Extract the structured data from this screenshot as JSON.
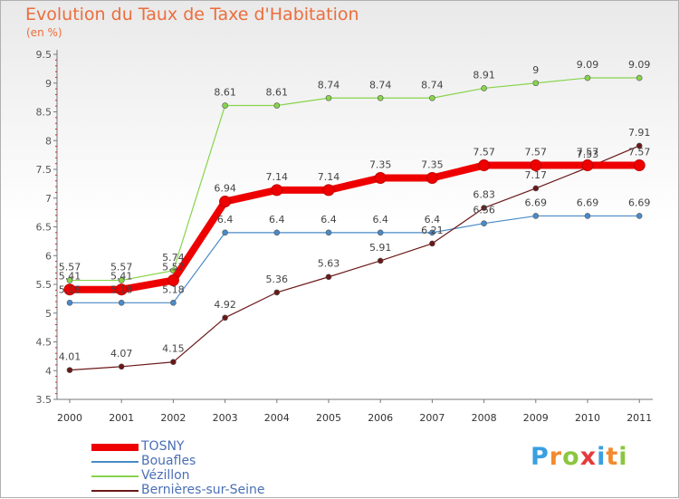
{
  "chart_data": {
    "type": "line",
    "title": "Evolution du Taux de Taxe d'Habitation",
    "ylabel": "(en %)",
    "xlabel": "",
    "categories": [
      "2000",
      "2001",
      "2002",
      "2003",
      "2004",
      "2005",
      "2006",
      "2007",
      "2008",
      "2009",
      "2010",
      "2011"
    ],
    "ylim": [
      3.5,
      9.5
    ],
    "yticks": [
      "3.5",
      "4",
      "4.5",
      "5",
      "5.5",
      "6",
      "6.5",
      "7",
      "7.5",
      "8",
      "8.5",
      "9",
      "9.5"
    ],
    "grid": false,
    "series": [
      {
        "name": "TOSNY",
        "color": "#ee0000",
        "values": [
          5.41,
          5.41,
          5.57,
          6.94,
          7.14,
          7.14,
          7.35,
          7.35,
          7.57,
          7.57,
          7.57,
          7.57
        ],
        "labels": [
          "5.41",
          "5.41",
          "5.57",
          "6.94",
          "7.14",
          "7.14",
          "7.35",
          "7.35",
          "7.57",
          "7.57",
          "7.57",
          "7.57"
        ]
      },
      {
        "name": "Bouafles",
        "color": "#4a8ac8",
        "values": [
          5.18,
          5.18,
          5.18,
          6.4,
          6.4,
          6.4,
          6.4,
          6.4,
          6.56,
          6.69,
          6.69,
          6.69
        ],
        "labels": [
          "5.18",
          "5.18",
          "5.18",
          "6.4",
          "6.4",
          "6.4",
          "6.4",
          "6.4",
          "6.56",
          "6.69",
          "6.69",
          "6.69"
        ]
      },
      {
        "name": "Vézillon",
        "color": "#88d44c",
        "values": [
          5.57,
          5.57,
          5.74,
          8.61,
          8.61,
          8.74,
          8.74,
          8.74,
          8.91,
          9,
          9.09,
          9.09
        ],
        "labels": [
          "5.57",
          "5.57",
          "5.74",
          "8.61",
          "8.61",
          "8.74",
          "8.74",
          "8.74",
          "8.91",
          "9",
          "9.09",
          "9.09"
        ]
      },
      {
        "name": "Bernières-sur-Seine",
        "color": "#6b1818",
        "values": [
          4.01,
          4.07,
          4.15,
          4.92,
          5.36,
          5.63,
          5.91,
          6.21,
          6.83,
          7.17,
          7.53,
          7.91
        ],
        "labels": [
          "4.01",
          "4.07",
          "4.15",
          "4.92",
          "5.36",
          "5.63",
          "5.91",
          "6.21",
          "6.83",
          "7.17",
          "7.53",
          "7.91"
        ]
      }
    ]
  },
  "logo": {
    "letters": [
      "P",
      "r",
      "o",
      "x",
      "i",
      "t",
      "i"
    ],
    "colors": [
      "#3a9fe0",
      "#f28a2e",
      "#8cc63f",
      "#e63a3a",
      "#3a9fe0",
      "#f28a2e",
      "#8cc63f"
    ]
  }
}
